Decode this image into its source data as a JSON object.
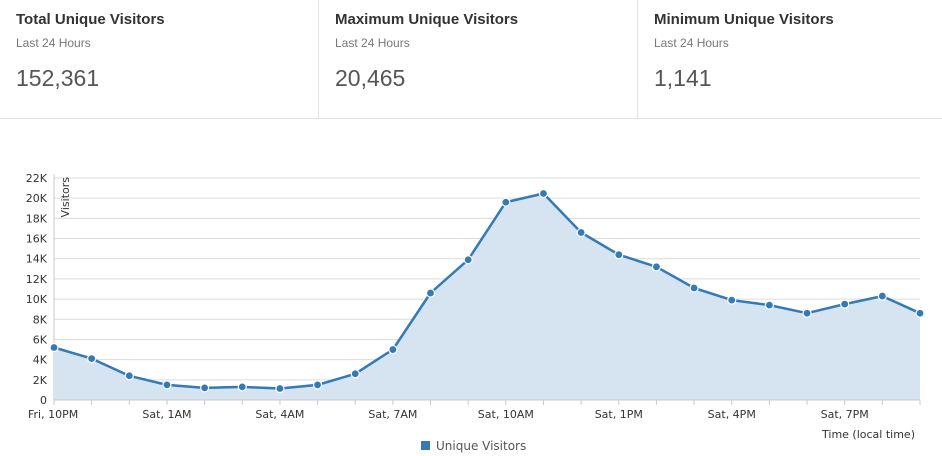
{
  "stats": [
    {
      "title": "Total Unique Visitors",
      "subtitle": "Last 24 Hours",
      "value": "152,361"
    },
    {
      "title": "Maximum Unique Visitors",
      "subtitle": "Last 24 Hours",
      "value": "20,465"
    },
    {
      "title": "Minimum Unique Visitors",
      "subtitle": "Last 24 Hours",
      "value": "1,141"
    }
  ],
  "colors": {
    "series": "#337ab7",
    "fill": "#d6e4f2",
    "grid": "#dcdcdc"
  },
  "chart_data": {
    "type": "area",
    "title": "",
    "xlabel": "Time (local time)",
    "ylabel": "Visitors",
    "ylim": [
      0,
      22000
    ],
    "yticks": [
      "0",
      "2K",
      "4K",
      "6K",
      "8K",
      "10K",
      "12K",
      "14K",
      "16K",
      "18K",
      "20K",
      "22K"
    ],
    "x": [
      "Fri, 10PM",
      "Fri, 11PM",
      "Sat, 12AM",
      "Sat, 1AM",
      "Sat, 2AM",
      "Sat, 3AM",
      "Sat, 4AM",
      "Sat, 5AM",
      "Sat, 6AM",
      "Sat, 7AM",
      "Sat, 8AM",
      "Sat, 9AM",
      "Sat, 10AM",
      "Sat, 11AM",
      "Sat, 12PM",
      "Sat, 1PM",
      "Sat, 2PM",
      "Sat, 3PM",
      "Sat, 4PM",
      "Sat, 5PM",
      "Sat, 6PM",
      "Sat, 7PM",
      "Sat, 8PM",
      "Sat, 9PM"
    ],
    "xtick_labels": [
      "Fri, 10PM",
      "Sat, 1AM",
      "Sat, 4AM",
      "Sat, 7AM",
      "Sat, 10AM",
      "Sat, 1PM",
      "Sat, 4PM",
      "Sat, 7PM"
    ],
    "legend": "bottom-center",
    "grid": true,
    "series": [
      {
        "name": "Unique Visitors",
        "values": [
          5200,
          4100,
          2400,
          1500,
          1200,
          1300,
          1141,
          1500,
          2600,
          5000,
          10600,
          13900,
          19600,
          20465,
          16600,
          14400,
          13200,
          11100,
          9900,
          9400,
          8600,
          9500,
          10300,
          8600
        ]
      }
    ]
  }
}
